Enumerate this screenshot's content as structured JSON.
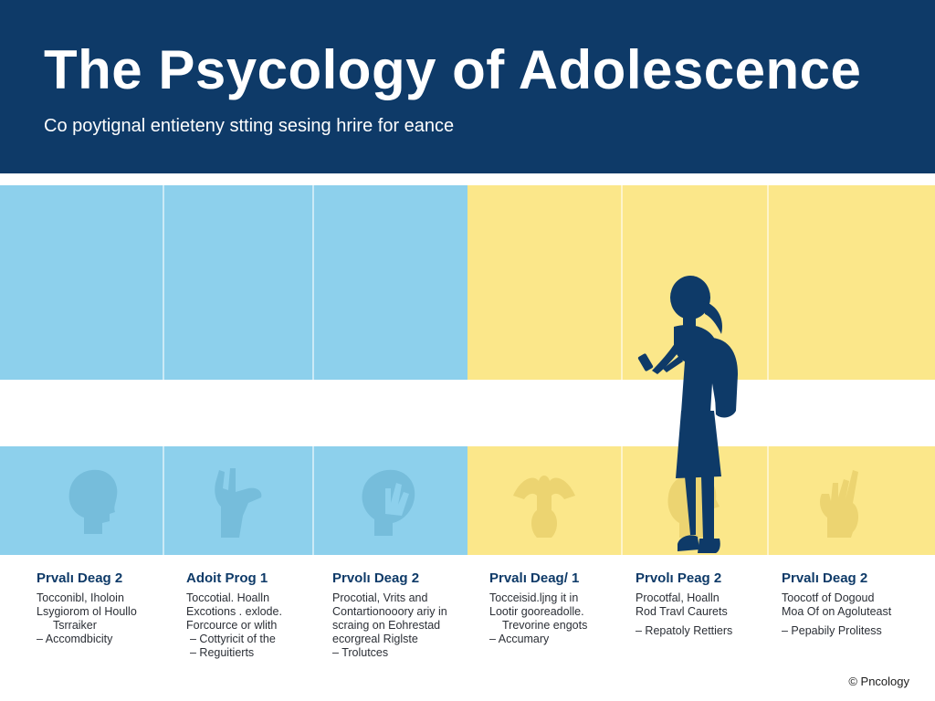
{
  "header": {
    "title": "The Psycology of Adolescence",
    "subtitle": "Co poytignal entieteny stting sesing hrire for eance"
  },
  "colors": {
    "header_bg": "#0e3a68",
    "blue_panel": "#8dd0ec",
    "yellow_panel": "#fbe78a",
    "silhouette": "#0e3a68"
  },
  "panels": {
    "icons": [
      "head-profile-icon",
      "hand-gesture-icon",
      "head-hand-icon",
      "raised-arms-icon",
      "face-profile-icon",
      "pointing-hand-icon"
    ]
  },
  "stages": [
    {
      "title": "Prvalı Deag 2",
      "lines": [
        "Tocconibl, Iholoin",
        "Lsygiorom ol Houllo",
        "Tsrraiker",
        "– Accomdbicity"
      ]
    },
    {
      "title": "Adoit Prog 1",
      "lines": [
        "Toccotial. Hoalln",
        "Excotions . exlode.",
        "Forcource or wlith",
        "– Cottyricit of the",
        "– Reguitierts"
      ]
    },
    {
      "title": "Prvolı Deag 2",
      "lines": [
        "Procotial, Vrits and",
        "Contartionooory ariy in",
        "scraing on Eohrestad",
        "ecorgreal Riglste",
        "– Trolutces"
      ]
    },
    {
      "title": "Prvalı Deag/ 1",
      "lines": [
        "Tocceisid.ljng it in",
        "Lootir gooreadolle.",
        "Trevorine engots",
        "– Accumary"
      ]
    },
    {
      "title": "Prvolı Peag 2",
      "lines": [
        "Procotfal, Hoalln",
        "Rod Travl Caurets",
        "– Repatoly Rettiers"
      ]
    },
    {
      "title": "Prvalı Deag 2",
      "lines": [
        "Toocotf of Dogoud",
        "Moa Of on Agoluteast",
        "– Pepabily Prolitess"
      ]
    }
  ],
  "footer": {
    "text": "© Pncology"
  }
}
